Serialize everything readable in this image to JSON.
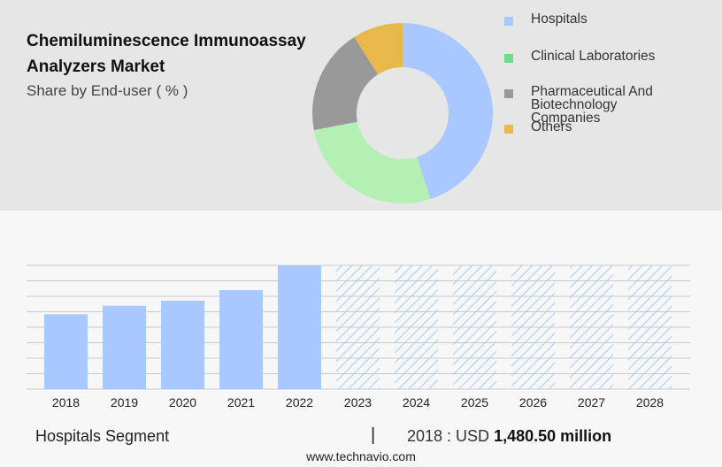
{
  "title": "Chemiluminescence Immunoassay Analyzers Market",
  "subtitle": "Share by End-user ( % )",
  "colors": {
    "hospitals": "#a8c8ff",
    "clinical_laboratories": "#b4f0b4",
    "pharma": "#999999",
    "others": "#e8b84a",
    "grid": "#c9c9c9",
    "forecast_hatch": "#a8c8ff"
  },
  "legend": [
    {
      "label": "Hospitals",
      "color": "#a8c8ff"
    },
    {
      "label": "Clinical Laboratories",
      "color": "#6cdd8c"
    },
    {
      "label": "Pharmaceutical And Biotechnology Companies",
      "color": "#999999"
    },
    {
      "label": "Others",
      "color": "#e8b84a"
    }
  ],
  "chart_data": [
    {
      "type": "pie",
      "style": "donut",
      "title": "Share by End-user ( % )",
      "categories": [
        "Hospitals",
        "Clinical Laboratories",
        "Pharmaceutical And Biotechnology Companies",
        "Others"
      ],
      "values": [
        45,
        27,
        19,
        9
      ],
      "colors": [
        "#a8c8ff",
        "#b4f0b4",
        "#999999",
        "#e8b84a"
      ]
    },
    {
      "type": "bar",
      "categories": [
        "2018",
        "2019",
        "2020",
        "2021",
        "2022",
        "2023",
        "2024",
        "2025",
        "2026",
        "2027",
        "2028"
      ],
      "series": [
        {
          "name": "Hospitals",
          "values": [
            1480.5,
            1650,
            1750,
            1960,
            2450,
            2450,
            2450,
            2450,
            2450,
            2450,
            2450
          ]
        }
      ],
      "forecast_from": "2023",
      "ylim": [
        0,
        2450
      ],
      "grid": true,
      "xlabel": "",
      "ylabel": ""
    }
  ],
  "footer": {
    "segment": "Hospitals Segment",
    "separator": "|",
    "value_prefix": "2018 : USD",
    "value_bold": "1,480.50 million",
    "source": "www.technavio.com"
  }
}
